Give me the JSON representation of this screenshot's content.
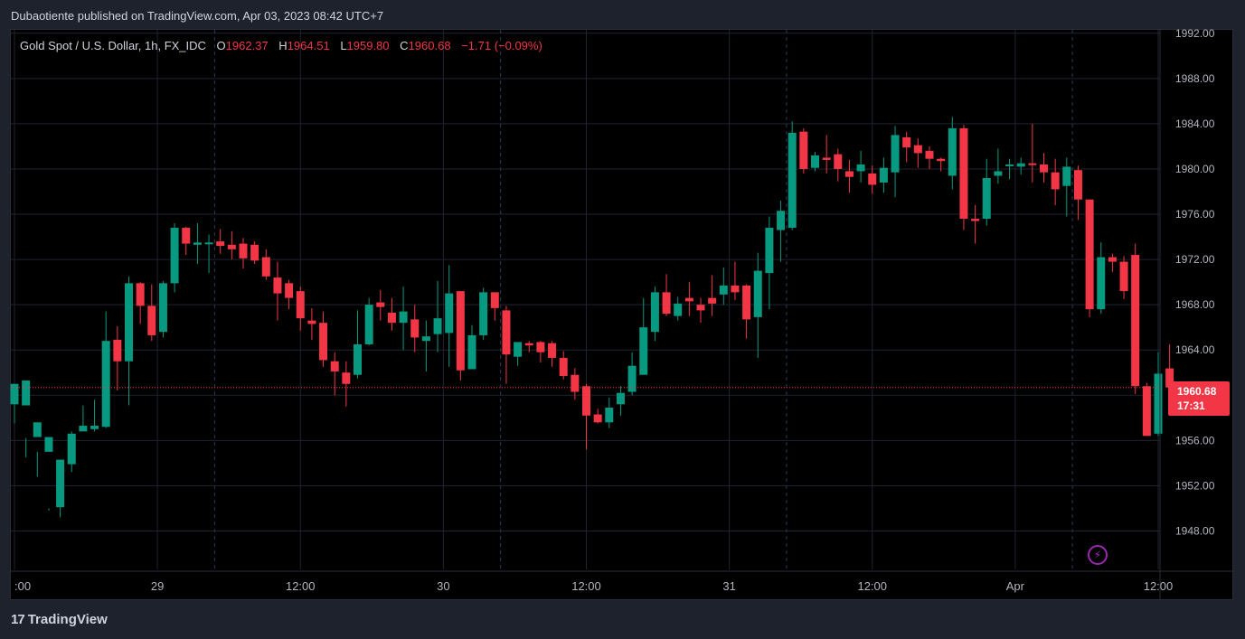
{
  "header": {
    "published": "Dubaotiente published on TradingView.com, Apr 03, 2023 08:42 UTC+7"
  },
  "legend": {
    "symbol": "Gold Spot / U.S. Dollar, 1h, FX_IDC",
    "open_label": "O",
    "open": "1962.37",
    "high_label": "H",
    "high": "1964.51",
    "low_label": "L",
    "low": "1959.80",
    "close_label": "C",
    "close": "1960.68",
    "change": "−1.71 (−0.09%)"
  },
  "price_tag": {
    "price": "1960.68",
    "countdown": "17:31"
  },
  "brand": {
    "logo": "17",
    "name": "TradingView"
  },
  "colors": {
    "up": "#089981",
    "down": "#f23645",
    "grid": "#1f2430",
    "axis_text": "#b2b5be",
    "background": "#000000",
    "accent": "#9c27b0"
  },
  "icons": {
    "lightning": "lightning-icon"
  },
  "chart_data": {
    "type": "candlestick",
    "title": "Gold Spot / U.S. Dollar, 1h, FX_IDC",
    "y_ticks": [
      1948,
      1952,
      1956,
      1960,
      1964,
      1968,
      1972,
      1976,
      1980,
      1984,
      1988,
      1992
    ],
    "y_tick_labels": [
      "1948.00",
      "1952.00",
      "1956.00",
      "1960.00",
      "1964.00",
      "1968.00",
      "1972.00",
      "1976.00",
      "1980.00",
      "1984.00",
      "1988.00",
      "1992.00"
    ],
    "ylim": [
      1944.6,
      1992.3
    ],
    "x_labels": [
      {
        "index": 0,
        "label": ":00"
      },
      {
        "index": 12.5,
        "label": "29"
      },
      {
        "index": 25,
        "label": "12:00"
      },
      {
        "index": 37.5,
        "label": "30"
      },
      {
        "index": 50,
        "label": "12:00"
      },
      {
        "index": 62.5,
        "label": "31"
      },
      {
        "index": 75,
        "label": "12:00"
      },
      {
        "index": 87.5,
        "label": "Apr"
      },
      {
        "index": 100,
        "label": "12:00"
      }
    ],
    "session_breaks": [
      17.5,
      42.5,
      67.5,
      92.5
    ],
    "last_price": 1960.68,
    "candles": [
      [
        1959.2,
        1961.0,
        1961.0,
        1957.5
      ],
      [
        1959.1,
        1961.3,
        1956.2,
        1954.5
      ],
      [
        1956.3,
        1957.6,
        1952.8,
        1955.0
      ],
      [
        1955.0,
        1956.3,
        1950.0,
        1949.8
      ],
      [
        1950.1,
        1954.3,
        1949.2,
        1954.1
      ],
      [
        1953.9,
        1956.6,
        1953.2,
        1956.8
      ],
      [
        1956.8,
        1957.3,
        1959.1,
        1957.0
      ],
      [
        1957.0,
        1957.3,
        1959.6,
        1956.8
      ],
      [
        1957.2,
        1964.8,
        1967.4,
        1957.1
      ],
      [
        1964.9,
        1963.0,
        1966.1,
        1960.4
      ],
      [
        1963.0,
        1969.9,
        1970.5,
        1959.1
      ],
      [
        1969.9,
        1967.9,
        1970.0,
        1966.3
      ],
      [
        1967.9,
        1965.3,
        1969.8,
        1964.8
      ],
      [
        1965.6,
        1969.9,
        1970.1,
        1965.1
      ],
      [
        1969.9,
        1974.8,
        1975.2,
        1969.1
      ],
      [
        1974.8,
        1973.4,
        1974.9,
        1972.4
      ],
      [
        1973.3,
        1973.5,
        1975.2,
        1971.6
      ],
      [
        1973.5,
        1973.5,
        1974.2,
        1970.8
      ],
      [
        1973.6,
        1973.2,
        1974.7,
        1972.5
      ],
      [
        1973.3,
        1972.9,
        1974.5,
        1972.0
      ],
      [
        1973.4,
        1972.1,
        1973.9,
        1971.2
      ],
      [
        1973.3,
        1971.9,
        1973.6,
        1971.6
      ],
      [
        1972.2,
        1970.5,
        1972.9,
        1970.2
      ],
      [
        1970.4,
        1969.0,
        1971.8,
        1966.6
      ],
      [
        1969.9,
        1968.6,
        1970.2,
        1967.6
      ],
      [
        1969.2,
        1966.8,
        1969.6,
        1965.7
      ],
      [
        1966.6,
        1966.3,
        1967.7,
        1964.9
      ],
      [
        1966.4,
        1963.1,
        1967.4,
        1962.5
      ],
      [
        1963.0,
        1962.1,
        1963.8,
        1960.0
      ],
      [
        1962.0,
        1961.0,
        1963.0,
        1959.0
      ],
      [
        1961.8,
        1964.5,
        1967.5,
        1961.5
      ],
      [
        1964.5,
        1968.0,
        1968.6,
        1964.4
      ],
      [
        1968.2,
        1967.8,
        1969.3,
        1966.6
      ],
      [
        1967.3,
        1966.4,
        1968.6,
        1965.7
      ],
      [
        1966.4,
        1967.4,
        1969.6,
        1964.0
      ],
      [
        1966.7,
        1965.1,
        1968.0,
        1963.8
      ],
      [
        1964.8,
        1965.2,
        1966.6,
        1962.1
      ],
      [
        1965.4,
        1966.8,
        1970.1,
        1963.8
      ],
      [
        1965.5,
        1969.0,
        1971.5,
        1962.5
      ],
      [
        1969.2,
        1962.2,
        1969.2,
        1961.3
      ],
      [
        1962.3,
        1965.3,
        1966.2,
        1962.5
      ],
      [
        1965.3,
        1969.1,
        1969.5,
        1964.9
      ],
      [
        1969.1,
        1967.7,
        1968.8,
        1966.6
      ],
      [
        1967.5,
        1963.6,
        1967.9,
        1961.0
      ],
      [
        1963.4,
        1964.7,
        1964.7,
        1962.6
      ],
      [
        1964.6,
        1964.4,
        1964.8,
        1963.8
      ],
      [
        1964.7,
        1963.8,
        1964.8,
        1962.9
      ],
      [
        1964.6,
        1963.3,
        1964.8,
        1962.5
      ],
      [
        1963.3,
        1961.7,
        1963.9,
        1961.4
      ],
      [
        1961.8,
        1960.3,
        1962.4,
        1959.6
      ],
      [
        1960.8,
        1958.2,
        1961.0,
        1955.2
      ],
      [
        1958.3,
        1957.6,
        1958.8,
        1957.5
      ],
      [
        1957.6,
        1958.9,
        1959.8,
        1957.1
      ],
      [
        1959.2,
        1960.2,
        1960.8,
        1958.2
      ],
      [
        1960.3,
        1962.6,
        1963.8,
        1960.0
      ],
      [
        1961.8,
        1966.0,
        1968.6,
        1961.9
      ],
      [
        1965.6,
        1969.1,
        1969.6,
        1964.8
      ],
      [
        1969.1,
        1967.2,
        1970.7,
        1967.0
      ],
      [
        1967.0,
        1968.1,
        1968.7,
        1966.6
      ],
      [
        1968.6,
        1968.3,
        1970.0,
        1967.0
      ],
      [
        1968.0,
        1967.5,
        1968.6,
        1966.4
      ],
      [
        1968.6,
        1968.1,
        1970.6,
        1967.0
      ],
      [
        1968.9,
        1969.7,
        1971.3,
        1968.0
      ],
      [
        1969.7,
        1969.1,
        1971.8,
        1968.4
      ],
      [
        1969.7,
        1966.7,
        1969.8,
        1965.0
      ],
      [
        1966.9,
        1971.0,
        1972.6,
        1963.3
      ],
      [
        1970.8,
        1974.8,
        1975.8,
        1967.6
      ],
      [
        1974.6,
        1976.3,
        1977.2,
        1971.8
      ],
      [
        1974.8,
        1983.2,
        1984.2,
        1974.6
      ],
      [
        1983.3,
        1980.0,
        1983.6,
        1979.6
      ],
      [
        1980.1,
        1981.2,
        1981.5,
        1979.8
      ],
      [
        1981.0,
        1980.8,
        1983.0,
        1979.6
      ],
      [
        1981.3,
        1980.0,
        1981.8,
        1978.9
      ],
      [
        1979.8,
        1979.3,
        1980.8,
        1977.9
      ],
      [
        1979.8,
        1980.4,
        1981.6,
        1978.8
      ],
      [
        1979.6,
        1978.6,
        1980.3,
        1977.8
      ],
      [
        1978.8,
        1980.1,
        1981.0,
        1977.9
      ],
      [
        1979.7,
        1983.0,
        1983.8,
        1977.5
      ],
      [
        1982.8,
        1981.9,
        1983.3,
        1980.6
      ],
      [
        1982.1,
        1981.4,
        1982.7,
        1980.1
      ],
      [
        1981.6,
        1980.9,
        1982.0,
        1980.0
      ],
      [
        1980.9,
        1980.7,
        1981.0,
        1979.8
      ],
      [
        1979.4,
        1983.6,
        1984.6,
        1978.2
      ],
      [
        1983.6,
        1975.6,
        1983.9,
        1974.6
      ],
      [
        1975.6,
        1975.4,
        1976.8,
        1973.4
      ],
      [
        1975.6,
        1979.2,
        1980.9,
        1975.0
      ],
      [
        1979.4,
        1979.8,
        1981.8,
        1978.7
      ],
      [
        1980.3,
        1980.4,
        1980.9,
        1979.1
      ],
      [
        1980.2,
        1980.5,
        1981.0,
        1979.5
      ],
      [
        1980.5,
        1980.4,
        1984.0,
        1978.8
      ],
      [
        1980.4,
        1979.7,
        1981.4,
        1978.8
      ],
      [
        1979.7,
        1978.2,
        1980.9,
        1976.8
      ],
      [
        1978.5,
        1980.2,
        1981.0,
        1975.8
      ],
      [
        1979.9,
        1977.3,
        1980.3,
        1975.5
      ],
      [
        1977.3,
        1967.6,
        1977.3,
        1966.9
      ],
      [
        1967.6,
        1972.2,
        1973.5,
        1967.2
      ],
      [
        1972.2,
        1971.8,
        1972.5,
        1970.9
      ],
      [
        1971.8,
        1969.2,
        1972.3,
        1968.5
      ],
      [
        1972.4,
        1960.8,
        1973.4,
        1960.1
      ],
      [
        1960.8,
        1956.4,
        1961.1,
        1956.4
      ],
      [
        1956.6,
        1961.9,
        1963.8,
        1956.4
      ],
      [
        1962.37,
        1960.68,
        1964.51,
        1959.8
      ]
    ]
  }
}
